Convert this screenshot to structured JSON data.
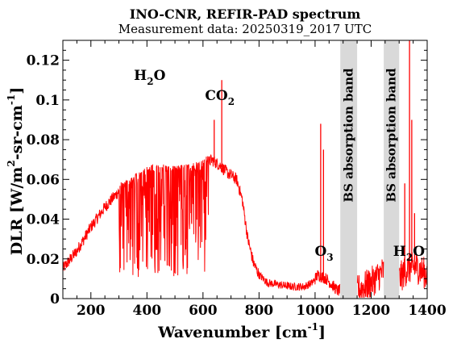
{
  "chart_data": {
    "type": "line",
    "title": "INO-CNR, REFIR-PAD spectrum",
    "subtitle": "Measurement data: 20250319_2017 UTC",
    "xlabel": {
      "main": "Wavenumber [cm",
      "sup": "-1",
      "tail": "]"
    },
    "ylabel": {
      "p1": "DLR [W/m",
      "sup1": "2",
      "p2": "-sr-cm",
      "sup2": "-1",
      "p3": "]"
    },
    "xlim": [
      100,
      1400
    ],
    "ylim": [
      0,
      0.13
    ],
    "xticks": [
      200,
      400,
      600,
      800,
      1000,
      1200,
      1400
    ],
    "yticks": [
      0,
      0.02,
      0.04,
      0.06,
      0.08,
      0.1,
      0.12
    ],
    "ytick_labels": [
      "0",
      "0.02",
      "0.04",
      "0.06",
      "0.08",
      "0.1",
      "0.12"
    ],
    "grid": false,
    "line_color": "#ff0000",
    "bands": [
      {
        "x0": 1090,
        "x1": 1150,
        "label": "BS absorption band",
        "color": "#d9d9d9"
      },
      {
        "x0": 1245,
        "x1": 1300,
        "label": "BS absorption band",
        "color": "#d9d9d9"
      }
    ],
    "annotations": [
      {
        "id": "h2o-left",
        "main": "H",
        "sub": "2",
        "tail": "O",
        "x": 410,
        "y": 0.11
      },
      {
        "id": "co2",
        "main": "CO",
        "sub": "2",
        "tail": "",
        "x": 660,
        "y": 0.1
      },
      {
        "id": "o3",
        "main": "O",
        "sub": "3",
        "tail": "",
        "x": 1032,
        "y": 0.0215
      },
      {
        "id": "h2o-right",
        "main": "H",
        "sub": "2",
        "tail": "O",
        "x": 1335,
        "y": 0.0215
      }
    ],
    "envelope": [
      [
        100,
        0.015
      ],
      [
        150,
        0.024
      ],
      [
        200,
        0.036
      ],
      [
        250,
        0.046
      ],
      [
        300,
        0.054
      ],
      [
        350,
        0.058
      ],
      [
        400,
        0.063
      ],
      [
        450,
        0.064
      ],
      [
        500,
        0.063
      ],
      [
        550,
        0.064
      ],
      [
        600,
        0.066
      ],
      [
        630,
        0.07
      ],
      [
        660,
        0.067
      ],
      [
        690,
        0.063
      ],
      [
        720,
        0.06
      ],
      [
        740,
        0.05
      ],
      [
        760,
        0.03
      ],
      [
        780,
        0.018
      ],
      [
        800,
        0.012
      ],
      [
        830,
        0.008
      ],
      [
        870,
        0.007
      ],
      [
        920,
        0.006
      ],
      [
        960,
        0.006
      ],
      [
        990,
        0.008
      ],
      [
        1010,
        0.012
      ],
      [
        1040,
        0.01
      ],
      [
        1080,
        0.004
      ],
      [
        1150,
        0.004
      ],
      [
        1200,
        0.008
      ],
      [
        1245,
        0.014
      ],
      [
        1300,
        0.01
      ],
      [
        1330,
        0.015
      ],
      [
        1360,
        0.016
      ],
      [
        1400,
        0.012
      ]
    ],
    "peaks": [
      {
        "x": 667,
        "y": 0.11
      },
      {
        "x": 640,
        "y": 0.09
      },
      {
        "x": 1020,
        "y": 0.088
      },
      {
        "x": 1030,
        "y": 0.075
      },
      {
        "x": 1337,
        "y": 0.13
      },
      {
        "x": 1320,
        "y": 0.058
      },
      {
        "x": 1355,
        "y": 0.043
      },
      {
        "x": 1345,
        "y": 0.09
      }
    ]
  }
}
